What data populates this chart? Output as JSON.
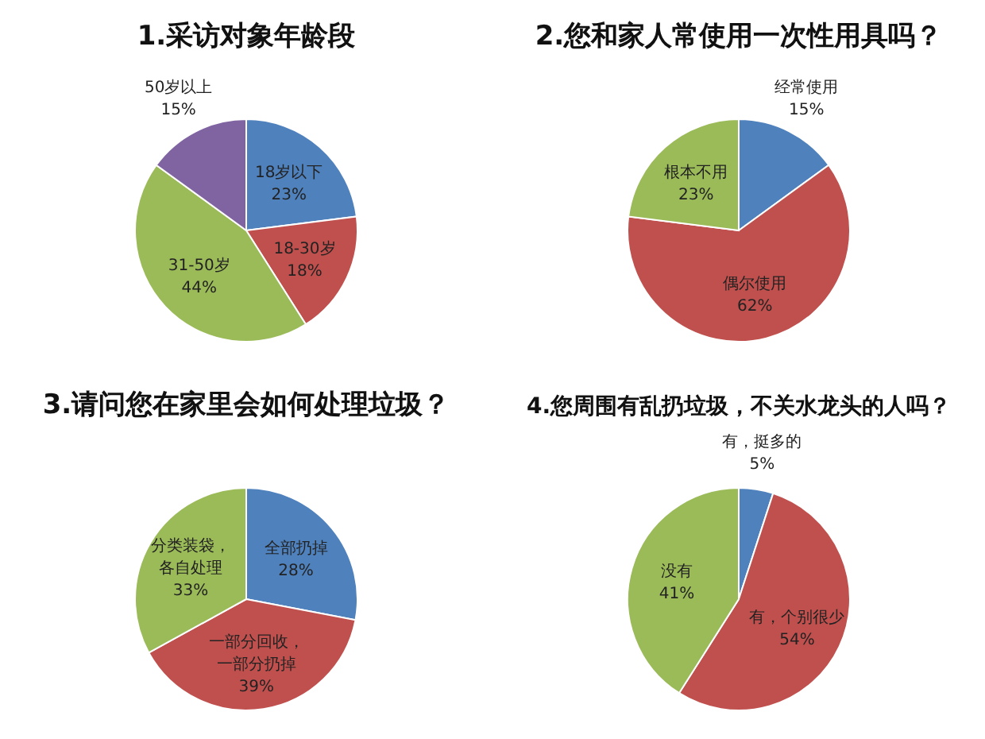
{
  "chart_data": [
    {
      "type": "pie",
      "title": "1.采访对象年龄段",
      "categories": [
        "18岁以下",
        "18-30岁",
        "31-50岁",
        "50岁以上"
      ],
      "values": [
        23,
        18,
        44,
        15
      ],
      "value_labels": [
        "23%",
        "18%",
        "44%",
        "15%"
      ],
      "colors": [
        "#4f81bd",
        "#c0504d",
        "#9bbb59",
        "#8064a2"
      ]
    },
    {
      "type": "pie",
      "title": "2.您和家人常使用一次性用具吗？",
      "categories": [
        "经常使用",
        "偶尔使用",
        "根本不用"
      ],
      "values": [
        15,
        62,
        23
      ],
      "value_labels": [
        "15%",
        "62%",
        "23%"
      ],
      "colors": [
        "#4f81bd",
        "#c0504d",
        "#9bbb59"
      ]
    },
    {
      "type": "pie",
      "title": "3.请问您在家里会如何处理垃圾？",
      "categories": [
        "全部扔掉",
        "一部分回收，一部分扔掉",
        "分类装袋，各自处理"
      ],
      "values": [
        28,
        39,
        33
      ],
      "value_labels": [
        "28%",
        "39%",
        "33%"
      ],
      "colors": [
        "#4f81bd",
        "#c0504d",
        "#9bbb59"
      ]
    },
    {
      "type": "pie",
      "title": "4.您周围有乱扔垃圾，不关水龙头的人吗？",
      "categories": [
        "有，挺多的",
        "有，个别很少",
        "没有"
      ],
      "values": [
        5,
        54,
        41
      ],
      "value_labels": [
        "5%",
        "54%",
        "41%"
      ],
      "colors": [
        "#4f81bd",
        "#c0504d",
        "#9bbb59"
      ]
    }
  ]
}
